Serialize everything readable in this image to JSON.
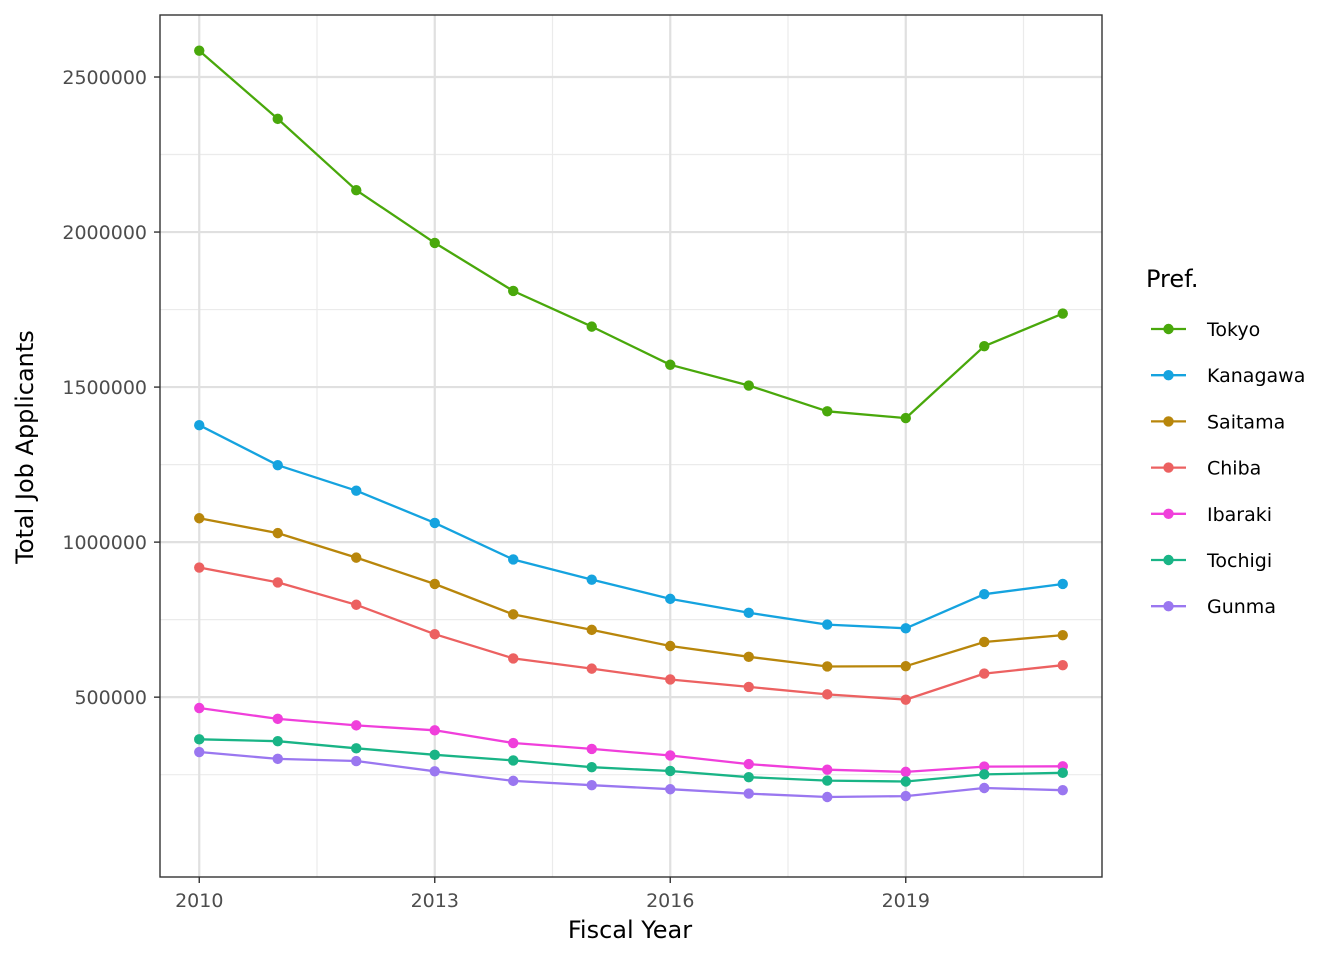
{
  "chart_data": {
    "type": "line",
    "xlabel": "Fiscal Year",
    "ylabel": "Total Job Applicants",
    "xlim": [
      2009.5,
      2021.5
    ],
    "ylim": [
      -80000,
      2700000
    ],
    "x_ticks": [
      2010,
      2013,
      2016,
      2019
    ],
    "x_minor_ticks": [
      2011.5,
      2014.5,
      2017.5,
      2020.5
    ],
    "y_ticks": [
      500000,
      1000000,
      1500000,
      2000000,
      2500000
    ],
    "y_minor_ticks": [
      250000,
      750000,
      1250000,
      1750000,
      2250000
    ],
    "grid": true,
    "legend": {
      "title": "Pref.",
      "position": "right"
    },
    "x": [
      2010,
      2011,
      2012,
      2013,
      2014,
      2015,
      2016,
      2017,
      2018,
      2019,
      2020,
      2021
    ],
    "series": [
      {
        "name": "Tokyo",
        "color": "#49a80b",
        "values": [
          2585000,
          2365000,
          2135000,
          1965000,
          1810000,
          1695000,
          1572000,
          1505000,
          1422000,
          1400000,
          1632000,
          1737000
        ]
      },
      {
        "name": "Kanagawa",
        "color": "#15a3df",
        "values": [
          1377000,
          1248000,
          1166000,
          1062000,
          944000,
          879000,
          817000,
          772000,
          734000,
          722000,
          832000,
          865000
        ]
      },
      {
        "name": "Saitama",
        "color": "#b8860b",
        "values": [
          1077000,
          1029000,
          950000,
          865000,
          767000,
          717000,
          665000,
          630000,
          599000,
          600000,
          678000,
          700000
        ]
      },
      {
        "name": "Chiba",
        "color": "#ec6161",
        "values": [
          918000,
          870000,
          798000,
          703000,
          625000,
          592000,
          557000,
          533000,
          509000,
          492000,
          576000,
          603000
        ]
      },
      {
        "name": "Ibaraki",
        "color": "#f03fdb",
        "values": [
          465000,
          430000,
          409000,
          393000,
          352000,
          333000,
          312000,
          284000,
          266000,
          259000,
          276000,
          277000
        ]
      },
      {
        "name": "Tochigi",
        "color": "#19b486",
        "values": [
          364000,
          358000,
          335000,
          314000,
          296000,
          274000,
          262000,
          242000,
          231000,
          228000,
          251000,
          256000
        ]
      },
      {
        "name": "Gunma",
        "color": "#9a77f0",
        "values": [
          323000,
          301000,
          294000,
          261000,
          230000,
          216000,
          203000,
          189000,
          178000,
          181000,
          207000,
          200000
        ]
      }
    ]
  }
}
